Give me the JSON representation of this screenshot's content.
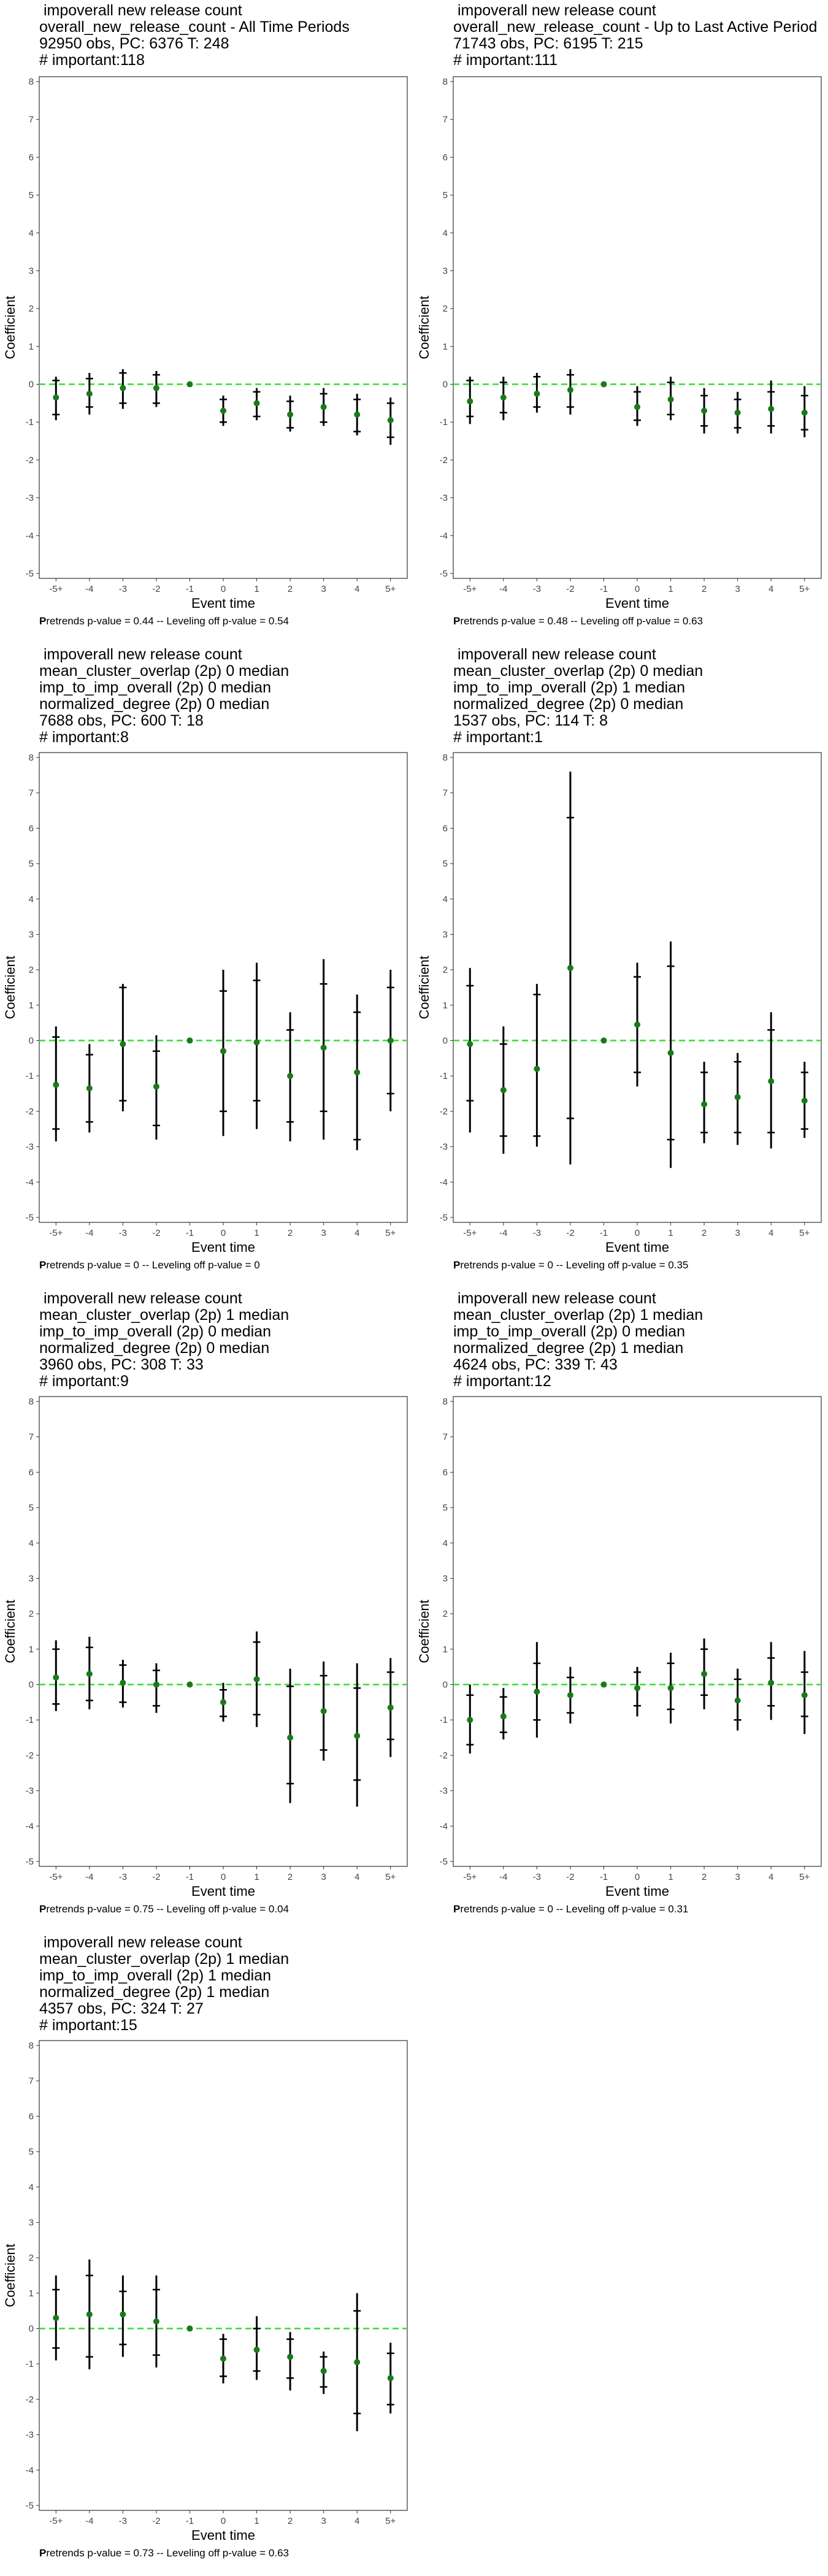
{
  "colors": {
    "point": "#1a7a1a",
    "zero_line": "#33dd33",
    "ci": "#000000",
    "axis": "#333333"
  },
  "chart_data": [
    {
      "type": "scatter",
      "title": [
        " impoverall new release count",
        "overall_new_release_count - All Time Periods",
        "92950 obs, PC: 6376 T: 248",
        "# important:118"
      ],
      "xlabel": "Event time",
      "ylabel": "Coefficient",
      "categories": [
        "-5+",
        "-4",
        "-3",
        "-2",
        "-1",
        "0",
        "1",
        "2",
        "3",
        "4",
        "5+"
      ],
      "ylim": [
        -5,
        8
      ],
      "yticks": [
        "-5",
        "-4",
        "-3",
        "-2",
        "-1",
        "0",
        "1",
        "2",
        "3",
        "4",
        "5",
        "6",
        "7",
        "8"
      ],
      "values": [
        -0.35,
        -0.25,
        -0.1,
        -0.1,
        0,
        -0.7,
        -0.5,
        -0.8,
        -0.6,
        -0.8,
        -0.95
      ],
      "ci90": [
        [
          -0.8,
          0.1
        ],
        [
          -0.6,
          0.15
        ],
        [
          -0.5,
          0.3
        ],
        [
          -0.5,
          0.25
        ],
        [
          0,
          0
        ],
        [
          -1.0,
          -0.4
        ],
        [
          -0.85,
          -0.2
        ],
        [
          -1.15,
          -0.45
        ],
        [
          -1.0,
          -0.25
        ],
        [
          -1.25,
          -0.4
        ],
        [
          -1.4,
          -0.5
        ]
      ],
      "ci95": [
        [
          -0.95,
          0.2
        ],
        [
          -0.8,
          0.3
        ],
        [
          -0.65,
          0.4
        ],
        [
          -0.6,
          0.35
        ],
        [
          0,
          0
        ],
        [
          -1.1,
          -0.3
        ],
        [
          -0.95,
          -0.1
        ],
        [
          -1.25,
          -0.3
        ],
        [
          -1.1,
          -0.1
        ],
        [
          -1.35,
          -0.25
        ],
        [
          -1.6,
          -0.35
        ]
      ],
      "caption_bold": "P",
      "caption": "retrends p-value = 0.44 -- Leveling off p-value = 0.54"
    },
    {
      "type": "scatter",
      "title": [
        " impoverall new release count",
        "overall_new_release_count - Up to Last Active Period",
        "71743 obs, PC: 6195 T: 215",
        "# important:111"
      ],
      "xlabel": "Event time",
      "ylabel": "Coefficient",
      "categories": [
        "-5+",
        "-4",
        "-3",
        "-2",
        "-1",
        "0",
        "1",
        "2",
        "3",
        "4",
        "5+"
      ],
      "ylim": [
        -5,
        8
      ],
      "yticks": [
        "-5",
        "-4",
        "-3",
        "-2",
        "-1",
        "0",
        "1",
        "2",
        "3",
        "4",
        "5",
        "6",
        "7",
        "8"
      ],
      "values": [
        -0.45,
        -0.35,
        -0.25,
        -0.15,
        0,
        -0.6,
        -0.4,
        -0.7,
        -0.75,
        -0.65,
        -0.75
      ],
      "ci90": [
        [
          -0.85,
          0.1
        ],
        [
          -0.75,
          0.05
        ],
        [
          -0.6,
          0.2
        ],
        [
          -0.6,
          0.25
        ],
        [
          0,
          0
        ],
        [
          -0.95,
          -0.2
        ],
        [
          -0.8,
          0.05
        ],
        [
          -1.1,
          -0.3
        ],
        [
          -1.15,
          -0.4
        ],
        [
          -1.1,
          -0.2
        ],
        [
          -1.2,
          -0.3
        ]
      ],
      "ci95": [
        [
          -1.05,
          0.2
        ],
        [
          -0.95,
          0.2
        ],
        [
          -0.75,
          0.3
        ],
        [
          -0.8,
          0.4
        ],
        [
          0,
          0
        ],
        [
          -1.1,
          -0.05
        ],
        [
          -0.95,
          0.2
        ],
        [
          -1.3,
          -0.1
        ],
        [
          -1.3,
          -0.2
        ],
        [
          -1.3,
          0.1
        ],
        [
          -1.4,
          -0.05
        ]
      ],
      "caption_bold": "P",
      "caption": "retrends p-value = 0.48 -- Leveling off p-value = 0.63"
    },
    {
      "type": "scatter",
      "title": [
        " impoverall new release count",
        "mean_cluster_overlap (2p) 0 median",
        "imp_to_imp_overall (2p) 0 median",
        "normalized_degree (2p) 0 median",
        "7688 obs, PC: 600 T: 18",
        "# important:8"
      ],
      "xlabel": "Event time",
      "ylabel": "Coefficient",
      "categories": [
        "-5+",
        "-4",
        "-3",
        "-2",
        "-1",
        "0",
        "1",
        "2",
        "3",
        "4",
        "5+"
      ],
      "ylim": [
        -5,
        8
      ],
      "yticks": [
        "-5",
        "-4",
        "-3",
        "-2",
        "-1",
        "0",
        "1",
        "2",
        "3",
        "4",
        "5",
        "6",
        "7",
        "8"
      ],
      "values": [
        -1.25,
        -1.35,
        -0.1,
        -1.3,
        0,
        -0.3,
        -0.05,
        -1.0,
        -0.2,
        -0.9,
        0.0
      ],
      "ci90": [
        [
          -2.5,
          0.1
        ],
        [
          -2.3,
          -0.4
        ],
        [
          -1.7,
          1.5
        ],
        [
          -2.4,
          -0.3
        ],
        [
          0,
          0
        ],
        [
          -2.0,
          1.4
        ],
        [
          -1.7,
          1.7
        ],
        [
          -2.3,
          0.3
        ],
        [
          -2.0,
          1.6
        ],
        [
          -2.8,
          0.8
        ],
        [
          -1.5,
          1.5
        ]
      ],
      "ci95": [
        [
          -2.85,
          0.4
        ],
        [
          -2.6,
          -0.1
        ],
        [
          -2.0,
          1.6
        ],
        [
          -2.8,
          0.15
        ],
        [
          0,
          0
        ],
        [
          -2.7,
          2.0
        ],
        [
          -2.5,
          2.2
        ],
        [
          -2.85,
          0.8
        ],
        [
          -2.8,
          2.3
        ],
        [
          -3.1,
          1.3
        ],
        [
          -2.0,
          2.0
        ]
      ],
      "caption_bold": "P",
      "caption": "retrends p-value = 0 -- Leveling off p-value = 0"
    },
    {
      "type": "scatter",
      "title": [
        " impoverall new release count",
        "mean_cluster_overlap (2p) 0 median",
        "imp_to_imp_overall (2p) 1 median",
        "normalized_degree (2p) 0 median",
        "1537 obs, PC: 114 T: 8",
        "# important:1"
      ],
      "xlabel": "Event time",
      "ylabel": "Coefficient",
      "categories": [
        "-5+",
        "-4",
        "-3",
        "-2",
        "-1",
        "0",
        "1",
        "2",
        "3",
        "4",
        "5+"
      ],
      "ylim": [
        -5,
        8
      ],
      "yticks": [
        "-5",
        "-4",
        "-3",
        "-2",
        "-1",
        "0",
        "1",
        "2",
        "3",
        "4",
        "5",
        "6",
        "7",
        "8"
      ],
      "values": [
        -0.1,
        -1.4,
        -0.8,
        2.05,
        0,
        0.45,
        -0.35,
        -1.8,
        -1.6,
        -1.15,
        -1.7
      ],
      "ci90": [
        [
          -1.7,
          1.55
        ],
        [
          -2.7,
          -0.1
        ],
        [
          -2.7,
          1.3
        ],
        [
          -2.2,
          6.3
        ],
        [
          0,
          0
        ],
        [
          -0.9,
          1.8
        ],
        [
          -2.8,
          2.1
        ],
        [
          -2.6,
          -0.9
        ],
        [
          -2.6,
          -0.6
        ],
        [
          -2.6,
          0.3
        ],
        [
          -2.5,
          -0.9
        ]
      ],
      "ci95": [
        [
          -2.6,
          2.05
        ],
        [
          -3.2,
          0.4
        ],
        [
          -3.0,
          1.6
        ],
        [
          -3.5,
          7.6
        ],
        [
          0,
          0
        ],
        [
          -1.3,
          2.2
        ],
        [
          -3.6,
          2.8
        ],
        [
          -2.9,
          -0.6
        ],
        [
          -2.95,
          -0.35
        ],
        [
          -3.05,
          0.8
        ],
        [
          -2.75,
          -0.6
        ]
      ],
      "caption_bold": "P",
      "caption": "retrends p-value = 0 -- Leveling off p-value = 0.35"
    },
    {
      "type": "scatter",
      "title": [
        " impoverall new release count",
        "mean_cluster_overlap (2p) 1 median",
        "imp_to_imp_overall (2p) 0 median",
        "normalized_degree (2p) 0 median",
        "3960 obs, PC: 308 T: 33",
        "# important:9"
      ],
      "xlabel": "Event time",
      "ylabel": "Coefficient",
      "categories": [
        "-5+",
        "-4",
        "-3",
        "-2",
        "-1",
        "0",
        "1",
        "2",
        "3",
        "4",
        "5+"
      ],
      "ylim": [
        -5,
        8
      ],
      "yticks": [
        "-5",
        "-4",
        "-3",
        "-2",
        "-1",
        "0",
        "1",
        "2",
        "3",
        "4",
        "5",
        "6",
        "7",
        "8"
      ],
      "values": [
        0.2,
        0.3,
        0.05,
        0.0,
        0,
        -0.5,
        0.15,
        -1.5,
        -0.75,
        -1.45,
        -0.65
      ],
      "ci90": [
        [
          -0.55,
          1.0
        ],
        [
          -0.45,
          1.05
        ],
        [
          -0.5,
          0.55
        ],
        [
          -0.6,
          0.4
        ],
        [
          0,
          0
        ],
        [
          -0.9,
          -0.15
        ],
        [
          -0.85,
          1.2
        ],
        [
          -2.8,
          -0.05
        ],
        [
          -1.85,
          0.25
        ],
        [
          -2.7,
          -0.1
        ],
        [
          -1.55,
          0.35
        ]
      ],
      "ci95": [
        [
          -0.75,
          1.25
        ],
        [
          -0.7,
          1.35
        ],
        [
          -0.65,
          0.7
        ],
        [
          -0.8,
          0.6
        ],
        [
          0,
          0
        ],
        [
          -1.05,
          0.05
        ],
        [
          -1.2,
          1.5
        ],
        [
          -3.35,
          0.45
        ],
        [
          -2.15,
          0.65
        ],
        [
          -3.45,
          0.6
        ],
        [
          -2.05,
          0.75
        ]
      ],
      "caption_bold": "P",
      "caption": "retrends p-value = 0.75 -- Leveling off p-value = 0.04"
    },
    {
      "type": "scatter",
      "title": [
        " impoverall new release count",
        "mean_cluster_overlap (2p) 1 median",
        "imp_to_imp_overall (2p) 0 median",
        "normalized_degree (2p) 1 median",
        "4624 obs, PC: 339 T: 43",
        "# important:12"
      ],
      "xlabel": "Event time",
      "ylabel": "Coefficient",
      "categories": [
        "-5+",
        "-4",
        "-3",
        "-2",
        "-1",
        "0",
        "1",
        "2",
        "3",
        "4",
        "5+"
      ],
      "ylim": [
        -5,
        8
      ],
      "yticks": [
        "-5",
        "-4",
        "-3",
        "-2",
        "-1",
        "0",
        "1",
        "2",
        "3",
        "4",
        "5",
        "6",
        "7",
        "8"
      ],
      "values": [
        -1.0,
        -0.9,
        -0.2,
        -0.3,
        0,
        -0.1,
        -0.1,
        0.3,
        -0.45,
        0.05,
        -0.3
      ],
      "ci90": [
        [
          -1.7,
          -0.3
        ],
        [
          -1.35,
          -0.35
        ],
        [
          -1.0,
          0.6
        ],
        [
          -0.8,
          0.2
        ],
        [
          0,
          0
        ],
        [
          -0.6,
          0.35
        ],
        [
          -0.7,
          0.6
        ],
        [
          -0.3,
          1.0
        ],
        [
          -1.0,
          0.15
        ],
        [
          -0.6,
          0.75
        ],
        [
          -0.9,
          0.35
        ]
      ],
      "ci95": [
        [
          -1.95,
          0.0
        ],
        [
          -1.55,
          -0.1
        ],
        [
          -1.5,
          1.2
        ],
        [
          -1.1,
          0.5
        ],
        [
          0,
          0
        ],
        [
          -0.9,
          0.5
        ],
        [
          -1.1,
          0.9
        ],
        [
          -0.7,
          1.3
        ],
        [
          -1.3,
          0.45
        ],
        [
          -1.0,
          1.2
        ],
        [
          -1.4,
          0.95
        ]
      ],
      "caption_bold": "P",
      "caption": "retrends p-value = 0 -- Leveling off p-value = 0.31"
    },
    {
      "type": "scatter",
      "title": [
        " impoverall new release count",
        "mean_cluster_overlap (2p) 1 median",
        "imp_to_imp_overall (2p) 1 median",
        "normalized_degree (2p) 1 median",
        "4357 obs, PC: 324 T: 27",
        "# important:15"
      ],
      "xlabel": "Event time",
      "ylabel": "Coefficient",
      "categories": [
        "-5+",
        "-4",
        "-3",
        "-2",
        "-1",
        "0",
        "1",
        "2",
        "3",
        "4",
        "5+"
      ],
      "ylim": [
        -5,
        8
      ],
      "yticks": [
        "-5",
        "-4",
        "-3",
        "-2",
        "-1",
        "0",
        "1",
        "2",
        "3",
        "4",
        "5",
        "6",
        "7",
        "8"
      ],
      "values": [
        0.3,
        0.4,
        0.4,
        0.2,
        0,
        -0.85,
        -0.6,
        -0.8,
        -1.2,
        -0.95,
        -1.4
      ],
      "ci90": [
        [
          -0.55,
          1.1
        ],
        [
          -0.8,
          1.5
        ],
        [
          -0.45,
          1.05
        ],
        [
          -0.75,
          1.1
        ],
        [
          0,
          0
        ],
        [
          -1.35,
          -0.3
        ],
        [
          -1.2,
          0.0
        ],
        [
          -1.4,
          -0.3
        ],
        [
          -1.65,
          -0.8
        ],
        [
          -2.4,
          0.5
        ],
        [
          -2.15,
          -0.7
        ]
      ],
      "ci95": [
        [
          -0.9,
          1.5
        ],
        [
          -1.15,
          1.95
        ],
        [
          -0.8,
          1.5
        ],
        [
          -1.1,
          1.5
        ],
        [
          0,
          0
        ],
        [
          -1.55,
          -0.15
        ],
        [
          -1.45,
          0.35
        ],
        [
          -1.75,
          -0.1
        ],
        [
          -1.85,
          -0.65
        ],
        [
          -2.9,
          1.0
        ],
        [
          -2.4,
          -0.4
        ]
      ],
      "caption_bold": "P",
      "caption": "retrends p-value = 0.73 -- Leveling off p-value = 0.63"
    }
  ]
}
